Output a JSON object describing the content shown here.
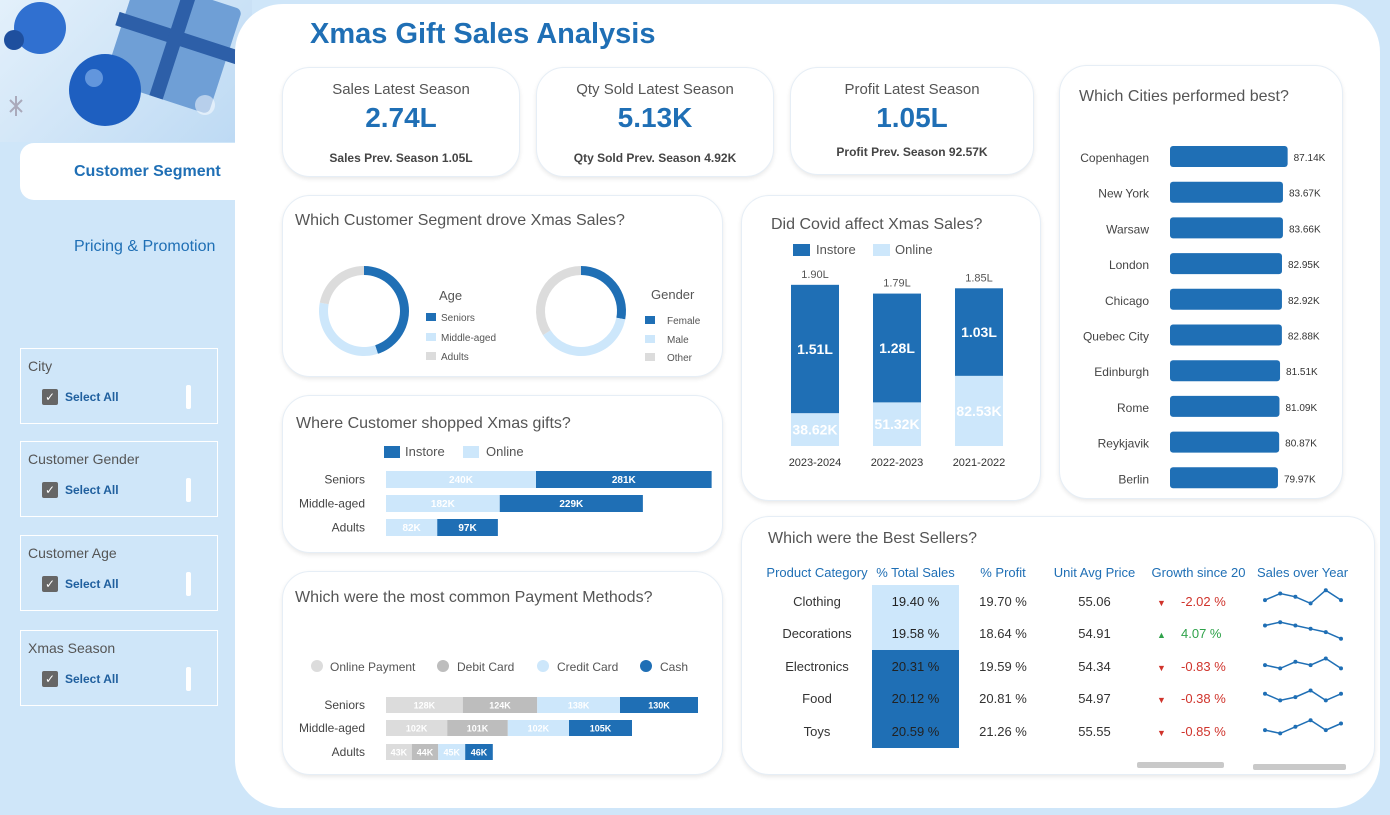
{
  "title": "Xmas Gift Sales Analysis",
  "nav": {
    "customer_segment": "Customer Segment",
    "pricing_promotion": "Pricing & Promotion"
  },
  "slicers": [
    {
      "title": "City",
      "option": "Select All"
    },
    {
      "title": "Customer Gender",
      "option": "Select All"
    },
    {
      "title": "Customer Age",
      "option": "Select All"
    },
    {
      "title": "Xmas Season",
      "option": "Select All"
    }
  ],
  "kpis": {
    "sales": {
      "label": "Sales Latest Season",
      "value": "2.74L",
      "sub": "Sales Prev. Season 1.05L"
    },
    "qty": {
      "label": "Qty Sold Latest Season",
      "value": "5.13K",
      "sub": "Qty Sold Prev. Season 4.92K"
    },
    "profit": {
      "label": "Profit Latest Season",
      "value": "1.05L",
      "sub": "Profit Prev. Season 92.57K"
    }
  },
  "segment": {
    "title": "Which Customer Segment drove Xmas Sales?",
    "age_title": "Age",
    "gender_title": "Gender",
    "age_legend": [
      "Seniors",
      "Middle-aged",
      "Adults"
    ],
    "gender_legend": [
      "Female",
      "Male",
      "Other"
    ]
  },
  "shopped": {
    "title": "Where Customer shopped Xmas gifts?",
    "legend": [
      "Instore",
      "Online"
    ]
  },
  "payment": {
    "title": "Which were the most common Payment Methods?",
    "legend": [
      "Online Payment",
      "Debit Card",
      "Credit Card",
      "Cash"
    ]
  },
  "covid": {
    "title": "Did Covid affect Xmas Sales?",
    "legend": [
      "Instore",
      "Online"
    ]
  },
  "cities": {
    "title": "Which Cities performed best?"
  },
  "best": {
    "title": "Which were the Best Sellers?",
    "headers": [
      "Product Category",
      "% Total Sales",
      "% Profit",
      "Unit Avg Price",
      "Growth since 20",
      "Sales over Year"
    ],
    "rows": [
      {
        "category": "Clothing",
        "total": "19.40 %",
        "profit": "19.70 %",
        "price": "55.06",
        "growth": "-2.02 %",
        "trend": "down",
        "total_frac": 0.194
      },
      {
        "category": "Decorations",
        "total": "19.58 %",
        "profit": "18.64 %",
        "price": "54.91",
        "growth": "4.07 %",
        "trend": "up",
        "total_frac": 0.1958
      },
      {
        "category": "Electronics",
        "total": "20.31 %",
        "profit": "19.59 %",
        "price": "54.34",
        "growth": "-0.83 %",
        "trend": "down",
        "total_frac": 0.2031
      },
      {
        "category": "Food",
        "total": "20.12 %",
        "profit": "20.81 %",
        "price": "54.97",
        "growth": "-0.38 %",
        "trend": "down",
        "total_frac": 0.2012
      },
      {
        "category": "Toys",
        "total": "20.59 %",
        "profit": "21.26 %",
        "price": "55.55",
        "growth": "-0.85 %",
        "trend": "down",
        "total_frac": 0.2059
      }
    ],
    "sparklines": [
      [
        3,
        5,
        4,
        2,
        6,
        3
      ],
      [
        5,
        6,
        5,
        4,
        3,
        1
      ],
      [
        3,
        2,
        4,
        3,
        5,
        2
      ],
      [
        4,
        2,
        3,
        5,
        2,
        4
      ],
      [
        3,
        2,
        4,
        6,
        3,
        5
      ]
    ]
  },
  "colors": {
    "dark": "#1f6fb5",
    "light": "#cde7fb",
    "grey": "#dcdcdc",
    "red": "#d0342c",
    "green": "#2fa24a"
  },
  "chart_data": [
    {
      "type": "pie",
      "title": "Age",
      "series": [
        {
          "name": "Seniors",
          "value": 45
        },
        {
          "name": "Middle-aged",
          "value": 33
        },
        {
          "name": "Adults",
          "value": 22
        }
      ]
    },
    {
      "type": "pie",
      "title": "Gender",
      "series": [
        {
          "name": "Female",
          "value": 28
        },
        {
          "name": "Male",
          "value": 38
        },
        {
          "name": "Other",
          "value": 34
        }
      ]
    },
    {
      "type": "bar",
      "title": "Where Customer shopped Xmas gifts?",
      "categories": [
        "Seniors",
        "Middle-aged",
        "Adults"
      ],
      "series": [
        {
          "name": "Online",
          "values": [
            240,
            182,
            82
          ],
          "labels": [
            "240K",
            "182K",
            "82K"
          ]
        },
        {
          "name": "Instore",
          "values": [
            281,
            229,
            97
          ],
          "labels": [
            "281K",
            "229K",
            "97K"
          ]
        }
      ]
    },
    {
      "type": "bar",
      "title": "Which were the most common Payment Methods?",
      "categories": [
        "Seniors",
        "Middle-aged",
        "Adults"
      ],
      "series": [
        {
          "name": "Online Payment",
          "values": [
            128,
            102,
            43
          ],
          "labels": [
            "128K",
            "102K",
            "43K"
          ]
        },
        {
          "name": "Debit Card",
          "values": [
            124,
            101,
            44
          ],
          "labels": [
            "124K",
            "101K",
            "44K"
          ]
        },
        {
          "name": "Credit Card",
          "values": [
            138,
            102,
            45
          ],
          "labels": [
            "138K",
            "102K",
            "45K"
          ]
        },
        {
          "name": "Cash",
          "values": [
            130,
            105,
            46
          ],
          "labels": [
            "130K",
            "105K",
            "46K"
          ]
        }
      ]
    },
    {
      "type": "bar",
      "title": "Did Covid affect Xmas Sales?",
      "categories": [
        "2023-2024",
        "2022-2023",
        "2021-2022"
      ],
      "totals": [
        "1.90L",
        "1.79L",
        "1.85L"
      ],
      "series": [
        {
          "name": "Instore",
          "values": [
            151,
            128,
            103
          ],
          "labels": [
            "1.51L",
            "1.28L",
            "1.03L"
          ]
        },
        {
          "name": "Online",
          "values": [
            38.62,
            51.32,
            82.53
          ],
          "labels": [
            "38.62K",
            "51.32K",
            "82.53K"
          ]
        }
      ]
    },
    {
      "type": "bar",
      "title": "Which Cities performed best?",
      "categories": [
        "Copenhagen",
        "New York",
        "Warsaw",
        "London",
        "Chicago",
        "Quebec City",
        "Edinburgh",
        "Rome",
        "Reykjavik",
        "Berlin"
      ],
      "values": [
        87.14,
        83.67,
        83.66,
        82.95,
        82.92,
        82.88,
        81.51,
        81.09,
        80.87,
        79.97
      ],
      "labels": [
        "87.14K",
        "83.67K",
        "83.66K",
        "82.95K",
        "82.92K",
        "82.88K",
        "81.51K",
        "81.09K",
        "80.87K",
        "79.97K"
      ]
    }
  ]
}
